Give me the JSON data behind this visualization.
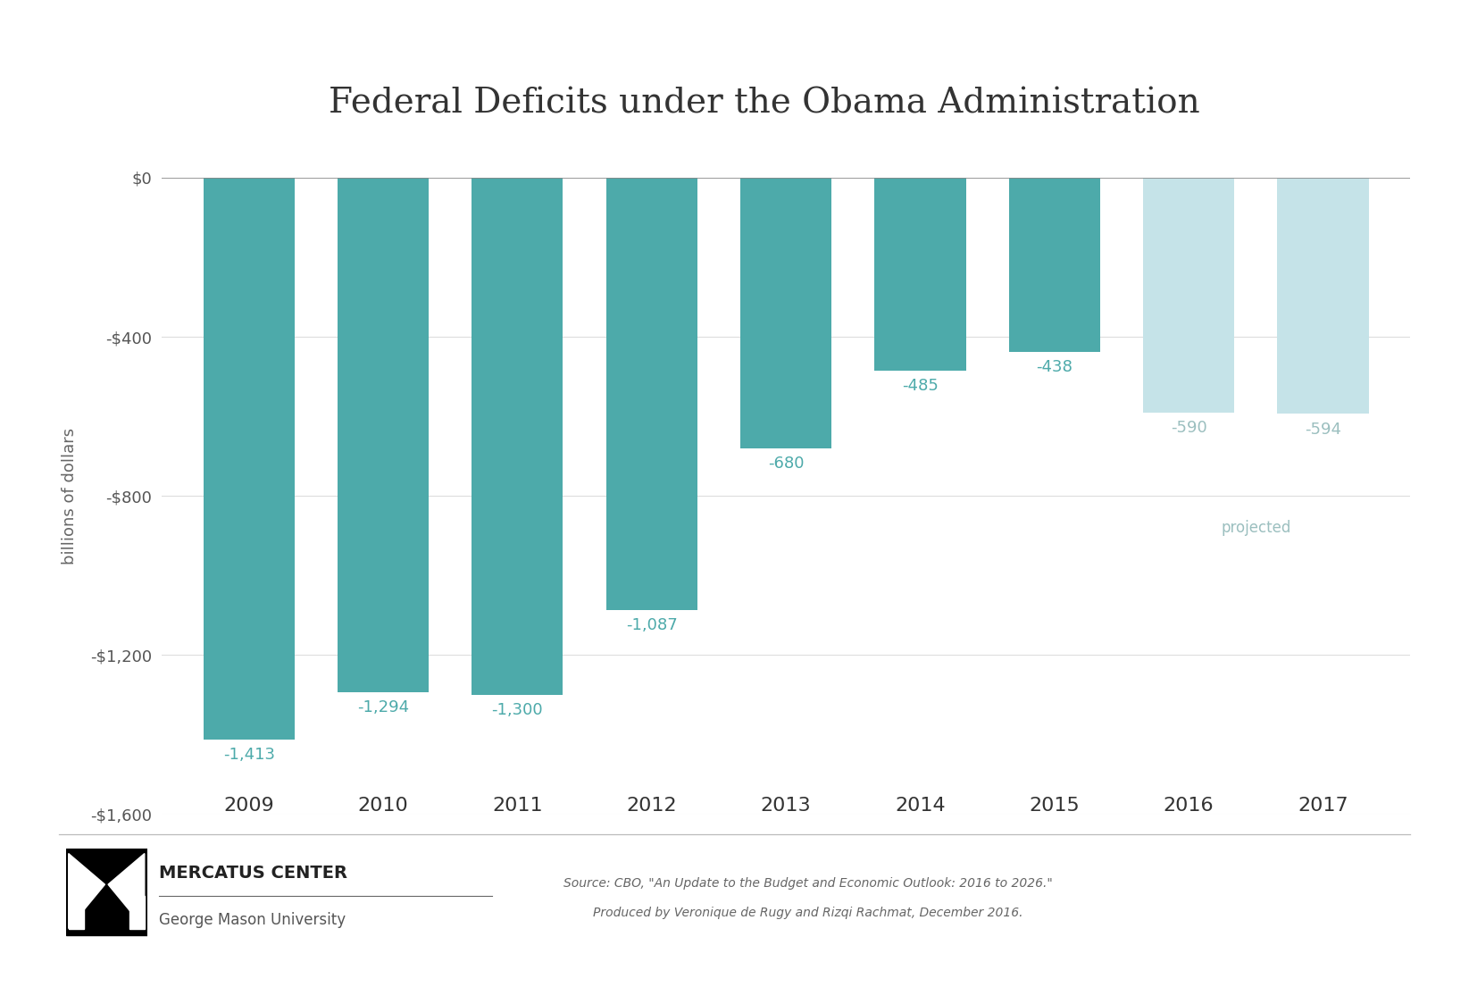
{
  "title": "Federal Deficits under the Obama Administration",
  "years": [
    "2009",
    "2010",
    "2011",
    "2012",
    "2013",
    "2014",
    "2015",
    "2016",
    "2017"
  ],
  "values": [
    -1413,
    -1294,
    -1300,
    -1087,
    -680,
    -485,
    -438,
    -590,
    -594
  ],
  "bar_color_actual": "#4DAAAA",
  "bar_color_projected": "#C5E3E8",
  "projected_years": [
    "2016",
    "2017"
  ],
  "bar_labels": [
    "-1,413",
    "-1,294",
    "-1,300",
    "-1,087",
    "-680",
    "-485",
    "-438",
    "-590",
    "-594"
  ],
  "label_color_actual": "#4DAAAA",
  "label_color_projected": "#9BBFBF",
  "ylabel": "billions of dollars",
  "ylim": [
    -1600,
    0
  ],
  "yticks": [
    0,
    -400,
    -800,
    -1200,
    -1600
  ],
  "ytick_labels": [
    "$0",
    "-$400",
    "-$800",
    "-$1,200",
    "-$1,600"
  ],
  "projected_label": "projected",
  "source_line1": "Source: CBO, \"An Update to the Budget and Economic Outlook: 2016 to 2026.\"",
  "source_line2": "Produced by Veronique de Rugy and Rizqi Rachmat, December 2016.",
  "mercatus_text1": "MERCATUS CENTER",
  "mercatus_text2": "George Mason University",
  "background_color": "#FFFFFF",
  "title_fontsize": 28,
  "axis_label_fontsize": 13,
  "bar_label_fontsize": 13,
  "year_fontsize": 16,
  "ytick_fontsize": 13,
  "title_color": "#333333",
  "ytick_color": "#555555",
  "year_label_color": "#333333",
  "ylabel_color": "#666666",
  "hline_color": "#888888",
  "grid_color": "#DDDDDD"
}
